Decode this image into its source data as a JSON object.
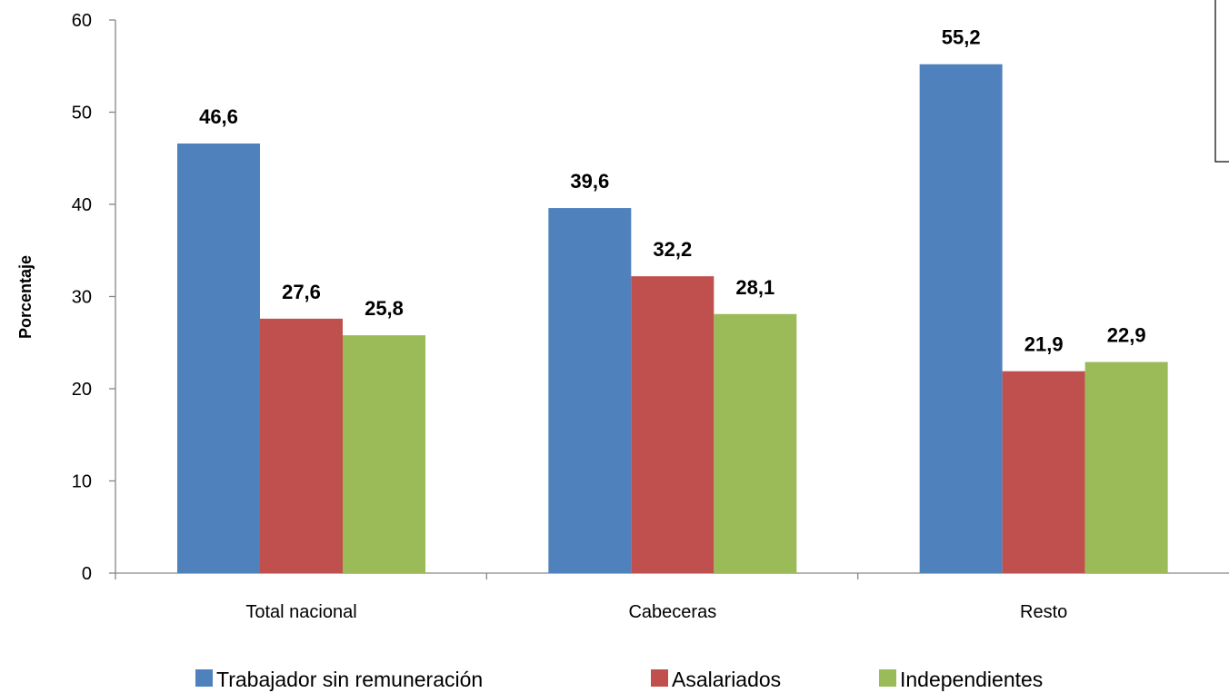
{
  "chart_data": {
    "type": "bar",
    "title": "",
    "xlabel": "",
    "ylabel": "Porcentaje",
    "ylim": [
      0,
      60
    ],
    "yticks": [
      "0",
      "10",
      "20",
      "30",
      "40",
      "50",
      "60"
    ],
    "grid": false,
    "legend_position": "bottom",
    "categories": [
      "Total nacional",
      "Cabeceras",
      "Resto"
    ],
    "series": [
      {
        "name": "Trabajador sin remuneración",
        "color": "#4F81BD",
        "values": [
          46.6,
          39.6,
          55.2
        ],
        "labels": [
          "46,6",
          "39,6",
          "55,2"
        ]
      },
      {
        "name": "Asalariados",
        "color": "#C0504D",
        "values": [
          27.6,
          32.2,
          21.9
        ],
        "labels": [
          "27,6",
          "32,2",
          "21,9"
        ]
      },
      {
        "name": "Independientes",
        "color": "#9BBB59",
        "values": [
          25.8,
          28.1,
          22.9
        ],
        "labels": [
          "25,8",
          "28,1",
          "22,9"
        ]
      }
    ]
  }
}
